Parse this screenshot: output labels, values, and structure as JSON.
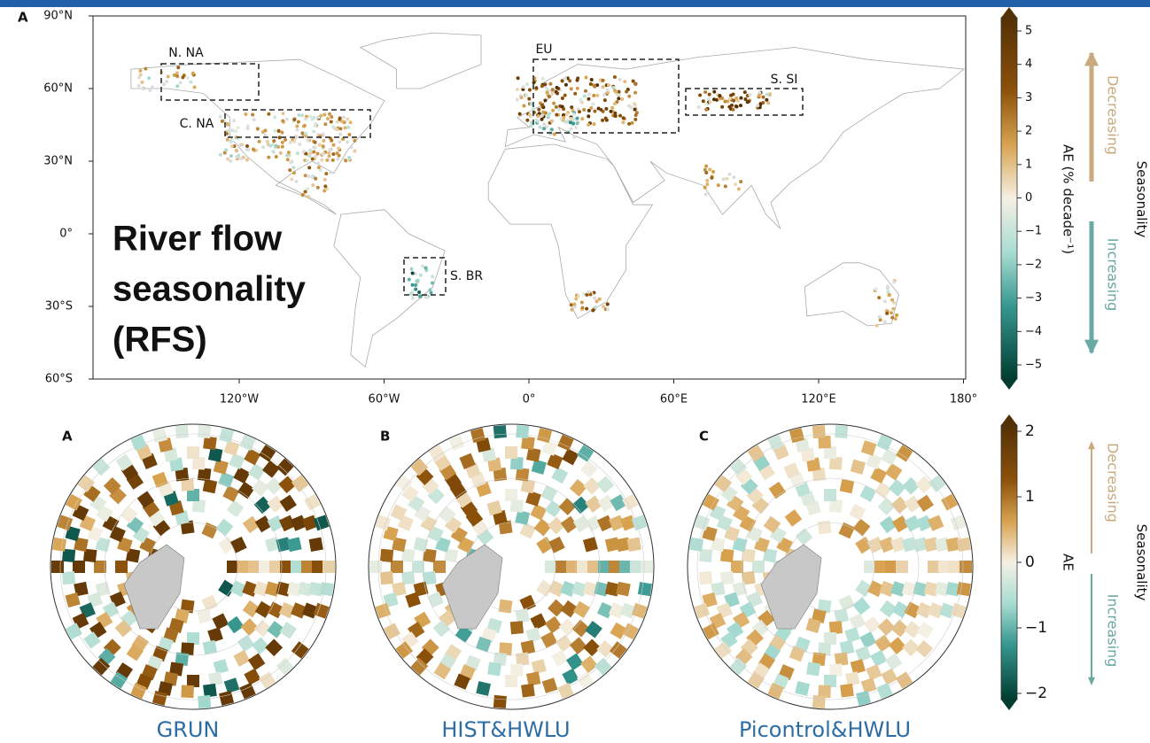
{
  "top_map": {
    "panel_label": "A",
    "lat_ticks": [
      "90°N",
      "60°N",
      "30°N",
      "0°",
      "30°S",
      "60°S"
    ],
    "lon_ticks": [
      "120°W",
      "60°W",
      "0°",
      "60°E",
      "120°E",
      "180°"
    ],
    "regions": [
      "N. NA",
      "C. NA",
      "EU",
      "S. SI",
      "S. BR"
    ],
    "overlay_title": [
      "River flow",
      "seasonality",
      "(RFS)"
    ],
    "colorbar": {
      "ticks": [
        "5",
        "4",
        "3",
        "2",
        "1",
        "0",
        "−1",
        "−2",
        "−3",
        "−4",
        "−5"
      ],
      "label": "AE (% decade⁻¹)",
      "up_label": "Decreasing",
      "down_label": "Increasing",
      "side_label": "Seasonality"
    }
  },
  "polar_maps": {
    "panels": [
      {
        "label": "A",
        "caption": "GRUN"
      },
      {
        "label": "B",
        "caption": "HIST&HWLU"
      },
      {
        "label": "C",
        "caption": "Picontrol&HWLU"
      }
    ],
    "colorbar": {
      "ticks": [
        "2",
        "1",
        "0",
        "−1",
        "−2"
      ],
      "label": "AE",
      "up_label": "Decreasing",
      "down_label": "Increasing",
      "side_label": "Seasonality"
    }
  }
}
